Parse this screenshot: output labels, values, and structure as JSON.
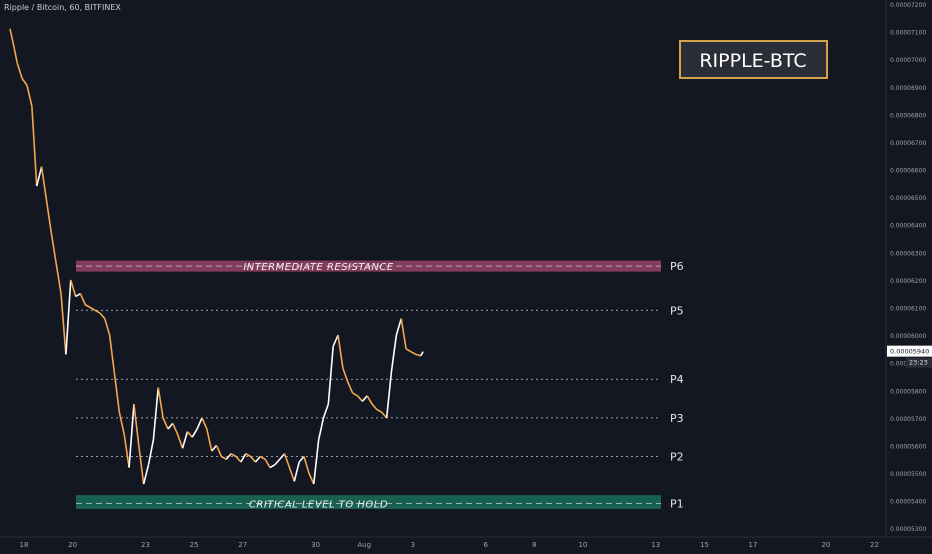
{
  "header": {
    "symbol_text": "Ripple / Bitcoin, 60, BITFINEX"
  },
  "badge": {
    "text": "RIPPLE-BTC",
    "border_color": "#d4a24c"
  },
  "colors": {
    "background": "#131722",
    "up": "#ffffff",
    "down": "#f5a64b",
    "resistance_zone": "#e05a8a",
    "support_zone": "#1e9c76",
    "level_line": "#c7c9cf",
    "axis_text": "#9ea3ad"
  },
  "chart_data": {
    "type": "line",
    "title": "",
    "xlabel": "",
    "ylabel": "",
    "x_tick_labels": [
      "18",
      "20",
      "23",
      "25",
      "27",
      "30",
      "Aug",
      "3",
      "6",
      "8",
      "10",
      "13",
      "15",
      "17",
      "20",
      "22"
    ],
    "x_tick_index": [
      0,
      2,
      5,
      7,
      9,
      12,
      14,
      16,
      19,
      21,
      23,
      26,
      28,
      30,
      33,
      35
    ],
    "y_ticks": [
      "0.00007200",
      "0.00007100",
      "0.00007000",
      "0.00006900",
      "0.00006800",
      "0.00006700",
      "0.00006600",
      "0.00006500",
      "0.00006400",
      "0.00006300",
      "0.00006200",
      "0.00006100",
      "0.00006000",
      "0.00005900",
      "0.00005800",
      "0.00005700",
      "0.00005600",
      "0.00005500",
      "0.00005400",
      "0.00005300"
    ],
    "ylim": [
      5.29e-05,
      7.2e-05
    ],
    "current_price_label": "0.00005940",
    "countdown_label": "23:23",
    "series": [
      {
        "x": [
          0,
          0.15,
          0.3,
          0.5,
          0.7,
          0.9,
          1.1,
          1.3,
          1.5,
          1.7,
          1.9,
          2.1,
          2.3,
          2.5,
          2.7,
          2.9,
          3.1,
          3.3,
          3.5,
          3.7,
          3.9,
          4.1,
          4.3,
          4.5,
          4.7,
          4.9,
          5.1,
          5.3,
          5.5,
          5.7,
          5.9,
          6.1,
          6.3,
          6.5,
          6.7,
          6.9,
          7.1,
          7.3,
          7.5,
          7.7,
          7.9,
          8.1,
          8.3,
          8.5,
          8.7,
          8.9,
          9.1,
          9.3,
          9.5,
          9.7,
          9.9,
          10.1,
          10.3,
          10.5,
          10.7,
          10.9,
          11.1,
          11.3,
          11.5,
          11.7,
          11.9,
          12.1,
          12.3,
          12.5,
          12.7,
          12.9,
          13.1,
          13.3,
          13.5,
          13.7,
          13.9,
          14.1,
          14.3,
          14.5,
          14.7,
          14.9,
          15.1,
          15.3,
          15.5,
          15.7,
          15.9,
          16.1,
          16.3,
          16.5,
          16.7,
          16.9,
          17.0
        ],
        "values": [
          7.11e-05,
          7.05e-05,
          6.985e-05,
          6.93e-05,
          6.905e-05,
          6.83e-05,
          6.54e-05,
          6.61e-05,
          6.49e-05,
          6.37e-05,
          6.26e-05,
          6.15e-05,
          5.93e-05,
          6.2e-05,
          6.14e-05,
          6.15e-05,
          6.11e-05,
          6.1e-05,
          6.09e-05,
          6.08e-05,
          6.06e-05,
          6e-05,
          5.86e-05,
          5.72e-05,
          5.64e-05,
          5.52e-05,
          5.75e-05,
          5.6e-05,
          5.46e-05,
          5.53e-05,
          5.62e-05,
          5.81e-05,
          5.7e-05,
          5.66e-05,
          5.68e-05,
          5.64e-05,
          5.59e-05,
          5.65e-05,
          5.63e-05,
          5.66e-05,
          5.7e-05,
          5.66e-05,
          5.58e-05,
          5.6e-05,
          5.56e-05,
          5.55e-05,
          5.57e-05,
          5.56e-05,
          5.54e-05,
          5.57e-05,
          5.56e-05,
          5.54e-05,
          5.56e-05,
          5.55e-05,
          5.52e-05,
          5.53e-05,
          5.55e-05,
          5.57e-05,
          5.52e-05,
          5.47e-05,
          5.54e-05,
          5.56e-05,
          5.5e-05,
          5.46e-05,
          5.62e-05,
          5.7e-05,
          5.75e-05,
          5.96e-05,
          6e-05,
          5.88e-05,
          5.83e-05,
          5.79e-05,
          5.78e-05,
          5.76e-05,
          5.78e-05,
          5.75e-05,
          5.73e-05,
          5.72e-05,
          5.7e-05,
          5.87e-05,
          6e-05,
          6.06e-05,
          5.95e-05,
          5.94e-05,
          5.93e-05,
          5.925e-05,
          5.94e-05
        ]
      }
    ],
    "levels": [
      {
        "label": "P6",
        "price": 6.25e-05,
        "zone": [
          6.23e-05,
          6.27e-05
        ],
        "zone_text": "INTERMEDIATE RESISTANCE",
        "zone_color": "resistance_zone"
      },
      {
        "label": "P5",
        "price": 6.09e-05
      },
      {
        "label": "P4",
        "price": 5.84e-05
      },
      {
        "label": "P3",
        "price": 5.7e-05
      },
      {
        "label": "P2",
        "price": 5.56e-05
      },
      {
        "label": "P1",
        "price": 5.39e-05,
        "zone": [
          5.37e-05,
          5.42e-05
        ],
        "zone_text": "CRITICAL LEVEL TO HOLD",
        "zone_color": "support_zone"
      }
    ]
  }
}
